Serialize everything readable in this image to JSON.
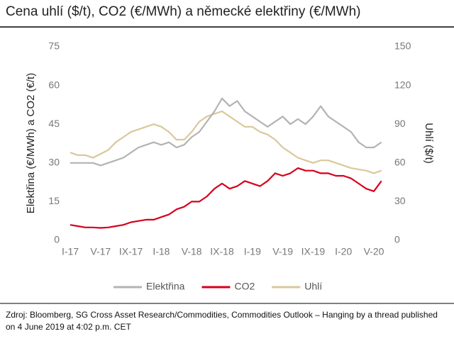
{
  "chart_data": {
    "type": "line",
    "title": "Cena uhlí ($/t), CO2 (€/MWh) a německé elektřiny (€/MWh)",
    "ylabel": "Elektřina (€/MWh) a CO2 (€/t)",
    "y2label": "Uhlí ($/t)",
    "source": "Zdroj: Bloomberg, SG Cross Asset Research/Commodities, Commodities Outlook – Hanging by a thread published on 4 June 2019 at 4:02 p.m. CET",
    "categories": [
      "I-17",
      null,
      null,
      null,
      "V-17",
      null,
      null,
      null,
      "IX-17",
      null,
      null,
      null,
      "I-18",
      null,
      null,
      null,
      "V-18",
      null,
      null,
      null,
      "IX-18",
      null,
      null,
      null,
      "I-19",
      null,
      null,
      null,
      "V-19",
      null,
      null,
      null,
      "IX-19",
      null,
      null,
      null,
      "I-20",
      null,
      null,
      null,
      "V-20",
      null
    ],
    "ylim": [
      0,
      75
    ],
    "yticks": [
      0,
      15,
      30,
      45,
      60,
      75
    ],
    "y2lim": [
      0,
      150
    ],
    "y2ticks": [
      0,
      30,
      60,
      90,
      120,
      150
    ],
    "grid": false,
    "legend": "bottom",
    "series": [
      {
        "name": "Elektřina",
        "color": "#b3b3b3",
        "values": [
          30,
          30,
          30,
          30,
          29,
          30,
          31,
          32,
          34,
          36,
          37,
          38,
          37,
          38,
          36,
          37,
          40,
          42,
          46,
          50,
          55,
          52,
          54,
          50,
          48,
          46,
          44,
          46,
          48,
          45,
          47,
          45,
          48,
          52,
          48,
          46,
          44,
          42,
          38,
          36,
          36,
          38
        ]
      },
      {
        "name": "CO2",
        "color": "#d7001c",
        "values": [
          6,
          5.5,
          5,
          5,
          4.8,
          5,
          5.5,
          6,
          7,
          7.5,
          8,
          8,
          9,
          10,
          12,
          13,
          15,
          15,
          17,
          20,
          22,
          20,
          21,
          23,
          22,
          21,
          23,
          26,
          25,
          26,
          28,
          27,
          27,
          26,
          26,
          25,
          25,
          24,
          22,
          20,
          19,
          23
        ]
      },
      {
        "name": "Uhlí",
        "color": "#d9c89b",
        "axis": "y2",
        "values": [
          68,
          66,
          66,
          64,
          67,
          70,
          76,
          80,
          84,
          86,
          88,
          90,
          88,
          84,
          78,
          78,
          84,
          92,
          96,
          98,
          100,
          96,
          92,
          88,
          88,
          84,
          82,
          78,
          72,
          68,
          64,
          62,
          60,
          62,
          62,
          60,
          58,
          56,
          55,
          54,
          52,
          54
        ]
      }
    ]
  }
}
